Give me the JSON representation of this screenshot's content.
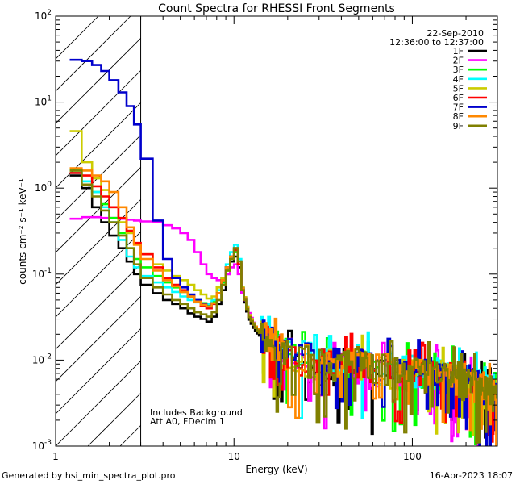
{
  "chart_data": {
    "type": "line",
    "title": "Count Spectra for RHESSI Front Segments",
    "xlabel": "Energy (keV)",
    "ylabel": "counts cm⁻² s⁻¹ keV⁻¹",
    "x_scale": "log",
    "y_scale": "log",
    "xlim": [
      1,
      300
    ],
    "ylim": [
      0.001,
      100
    ],
    "x_tick_labels": [
      "1",
      "10",
      "100"
    ],
    "y_tick_labels": [
      {
        "base": "10",
        "exp": "-3"
      },
      {
        "base": "10",
        "exp": "-2"
      },
      {
        "base": "10",
        "exp": "-1"
      },
      {
        "base": "10",
        "exp": "0"
      },
      {
        "base": "10",
        "exp": "1"
      },
      {
        "base": "10",
        "exp": "2"
      }
    ],
    "date": "22-Sep-2010",
    "time_range": "12:36:00 to 12:37:00",
    "annotations": [
      "Includes Background",
      "Att A0, FDecim 1"
    ],
    "hatched_region_max_energy": 3.0,
    "noise_seed": [
      11,
      23,
      37,
      41,
      53,
      67,
      71,
      83,
      97
    ],
    "series": [
      {
        "name": "1F",
        "color": "#000000",
        "x": [
          1.2,
          1.4,
          1.6,
          1.8,
          2.0,
          2.25,
          2.5,
          2.75,
          3.0,
          3.5,
          4.0,
          4.5,
          5.0,
          5.5,
          6.0,
          6.5,
          7.0,
          7.5,
          8.0,
          8.5,
          9.0,
          9.5,
          10.0,
          10.5,
          11.0,
          12.0,
          13.0,
          15.0,
          17.0,
          20.0,
          25.0,
          30.0,
          40.0,
          50.0,
          60.0,
          80.0,
          100.0,
          150.0,
          200.0,
          250.0,
          300.0
        ],
        "y": [
          1.4,
          1.0,
          0.6,
          0.4,
          0.28,
          0.2,
          0.14,
          0.1,
          0.075,
          0.06,
          0.05,
          0.045,
          0.04,
          0.035,
          0.032,
          0.03,
          0.028,
          0.032,
          0.045,
          0.065,
          0.1,
          0.14,
          0.16,
          0.12,
          0.06,
          0.03,
          0.022,
          0.016,
          0.013,
          0.011,
          0.009,
          0.008,
          0.0075,
          0.008,
          0.007,
          0.0068,
          0.0065,
          0.006,
          0.005,
          0.004,
          0.003
        ]
      },
      {
        "name": "2F",
        "color": "#ff00ff",
        "x": [
          1.2,
          1.4,
          1.6,
          1.8,
          2.0,
          2.25,
          2.5,
          2.75,
          3.0,
          3.5,
          4.0,
          4.5,
          5.0,
          5.5,
          6.0,
          6.5,
          7.0,
          7.5,
          8.0,
          8.5,
          9.0,
          9.5,
          10.0,
          10.5,
          11.0,
          12.0,
          13.0,
          15.0,
          17.0,
          20.0,
          25.0,
          30.0,
          40.0,
          50.0,
          60.0,
          80.0,
          100.0,
          150.0,
          200.0,
          250.0,
          300.0
        ],
        "y": [
          0.44,
          0.46,
          0.46,
          0.45,
          0.45,
          0.44,
          0.43,
          0.42,
          0.41,
          0.4,
          0.37,
          0.34,
          0.3,
          0.25,
          0.18,
          0.13,
          0.1,
          0.09,
          0.085,
          0.09,
          0.1,
          0.12,
          0.13,
          0.1,
          0.06,
          0.036,
          0.025,
          0.018,
          0.015,
          0.012,
          0.01,
          0.009,
          0.008,
          0.0085,
          0.0075,
          0.007,
          0.0068,
          0.006,
          0.0052,
          0.0042,
          0.0032
        ]
      },
      {
        "name": "3F",
        "color": "#00ff00",
        "x": [
          1.2,
          1.4,
          1.6,
          1.8,
          2.0,
          2.25,
          2.5,
          2.75,
          3.0,
          3.5,
          4.0,
          4.5,
          5.0,
          5.5,
          6.0,
          6.5,
          7.0,
          7.5,
          8.0,
          8.5,
          9.0,
          9.5,
          10.0,
          10.5,
          11.0,
          12.0,
          13.0,
          15.0,
          17.0,
          20.0,
          25.0,
          30.0,
          40.0,
          50.0,
          60.0,
          80.0,
          100.0,
          150.0,
          200.0,
          250.0,
          300.0
        ],
        "y": [
          1.6,
          1.2,
          0.9,
          0.65,
          0.45,
          0.3,
          0.2,
          0.15,
          0.12,
          0.095,
          0.08,
          0.07,
          0.062,
          0.055,
          0.05,
          0.046,
          0.044,
          0.048,
          0.06,
          0.08,
          0.11,
          0.15,
          0.18,
          0.13,
          0.065,
          0.032,
          0.024,
          0.017,
          0.014,
          0.012,
          0.01,
          0.009,
          0.0085,
          0.009,
          0.008,
          0.0075,
          0.007,
          0.0065,
          0.0055,
          0.0045,
          0.0035
        ]
      },
      {
        "name": "4F",
        "color": "#00ffff",
        "x": [
          1.2,
          1.4,
          1.6,
          1.8,
          2.0,
          2.25,
          2.5,
          2.75,
          3.0,
          3.5,
          4.0,
          4.5,
          5.0,
          5.5,
          6.0,
          6.5,
          7.0,
          7.5,
          8.0,
          8.5,
          9.0,
          9.5,
          10.0,
          10.5,
          11.0,
          12.0,
          13.0,
          15.0,
          17.0,
          20.0,
          25.0,
          30.0,
          40.0,
          50.0,
          60.0,
          80.0,
          100.0,
          150.0,
          200.0,
          250.0,
          300.0
        ],
        "y": [
          1.5,
          1.2,
          0.9,
          0.6,
          0.4,
          0.25,
          0.16,
          0.12,
          0.095,
          0.08,
          0.07,
          0.062,
          0.055,
          0.05,
          0.047,
          0.045,
          0.045,
          0.05,
          0.065,
          0.09,
          0.13,
          0.18,
          0.22,
          0.15,
          0.07,
          0.034,
          0.025,
          0.018,
          0.015,
          0.012,
          0.011,
          0.0095,
          0.009,
          0.0095,
          0.0085,
          0.008,
          0.0075,
          0.007,
          0.006,
          0.0048,
          0.0036
        ]
      },
      {
        "name": "5F",
        "color": "#cccc00",
        "x": [
          1.2,
          1.4,
          1.6,
          1.8,
          2.0,
          2.25,
          2.5,
          2.75,
          3.0,
          3.5,
          4.0,
          4.5,
          5.0,
          5.5,
          6.0,
          6.5,
          7.0,
          7.5,
          8.0,
          8.5,
          9.0,
          9.5,
          10.0,
          10.5,
          11.0,
          12.0,
          13.0,
          15.0,
          17.0,
          20.0,
          25.0,
          30.0,
          40.0,
          50.0,
          60.0,
          80.0,
          100.0,
          150.0,
          200.0,
          250.0,
          300.0
        ],
        "y": [
          4.6,
          2.0,
          1.3,
          0.95,
          0.6,
          0.4,
          0.3,
          0.22,
          0.17,
          0.13,
          0.11,
          0.095,
          0.085,
          0.075,
          0.065,
          0.058,
          0.052,
          0.055,
          0.07,
          0.09,
          0.12,
          0.16,
          0.2,
          0.14,
          0.07,
          0.034,
          0.025,
          0.018,
          0.015,
          0.012,
          0.01,
          0.009,
          0.0085,
          0.009,
          0.008,
          0.0075,
          0.007,
          0.0065,
          0.0055,
          0.0045,
          0.0035
        ]
      },
      {
        "name": "6F",
        "color": "#ff0000",
        "x": [
          1.2,
          1.4,
          1.6,
          1.8,
          2.0,
          2.25,
          2.5,
          2.75,
          3.0,
          3.5,
          4.0,
          4.5,
          5.0,
          5.5,
          6.0,
          6.5,
          7.0,
          7.5,
          8.0,
          8.5,
          9.0,
          9.5,
          10.0,
          10.5,
          11.0,
          12.0,
          13.0,
          15.0,
          17.0,
          20.0,
          25.0,
          30.0,
          40.0,
          50.0,
          60.0,
          80.0,
          100.0,
          150.0,
          200.0,
          250.0,
          300.0
        ],
        "y": [
          1.5,
          1.4,
          1.05,
          0.8,
          0.6,
          0.45,
          0.32,
          0.23,
          0.17,
          0.12,
          0.09,
          0.075,
          0.065,
          0.055,
          0.048,
          0.043,
          0.04,
          0.045,
          0.06,
          0.085,
          0.12,
          0.16,
          0.19,
          0.13,
          0.065,
          0.032,
          0.024,
          0.017,
          0.014,
          0.012,
          0.01,
          0.009,
          0.0085,
          0.009,
          0.008,
          0.0075,
          0.007,
          0.0065,
          0.0055,
          0.0045,
          0.0035
        ]
      },
      {
        "name": "7F",
        "color": "#0000cc",
        "x": [
          1.2,
          1.4,
          1.6,
          1.8,
          2.0,
          2.25,
          2.5,
          2.75,
          3.0,
          3.5,
          4.0,
          4.5,
          5.0,
          5.5,
          6.0,
          6.5,
          7.0,
          7.5,
          8.0,
          8.5,
          9.0,
          9.5,
          10.0,
          10.5,
          11.0,
          12.0,
          13.0,
          15.0,
          17.0,
          20.0,
          25.0,
          30.0,
          40.0,
          50.0,
          60.0,
          80.0,
          100.0,
          150.0,
          200.0,
          250.0,
          300.0
        ],
        "y": [
          31,
          30,
          27,
          23,
          18,
          13,
          9,
          5.5,
          2.2,
          0.42,
          0.15,
          0.09,
          0.07,
          0.058,
          0.05,
          0.045,
          0.042,
          0.046,
          0.06,
          0.085,
          0.12,
          0.16,
          0.2,
          0.14,
          0.068,
          0.033,
          0.025,
          0.018,
          0.015,
          0.012,
          0.011,
          0.0095,
          0.009,
          0.0095,
          0.0085,
          0.008,
          0.0075,
          0.007,
          0.006,
          0.0048,
          0.0036
        ]
      },
      {
        "name": "8F",
        "color": "#ff8800",
        "x": [
          1.2,
          1.4,
          1.6,
          1.8,
          2.0,
          2.25,
          2.5,
          2.75,
          3.0,
          3.5,
          4.0,
          4.5,
          5.0,
          5.5,
          6.0,
          6.5,
          7.0,
          7.5,
          8.0,
          8.5,
          9.0,
          9.5,
          10.0,
          10.5,
          11.0,
          12.0,
          13.0,
          15.0,
          17.0,
          20.0,
          25.0,
          30.0,
          40.0,
          50.0,
          60.0,
          80.0,
          100.0,
          150.0,
          200.0,
          250.0,
          300.0
        ],
        "y": [
          1.7,
          1.6,
          1.4,
          1.2,
          0.9,
          0.6,
          0.35,
          0.22,
          0.15,
          0.11,
          0.085,
          0.072,
          0.062,
          0.055,
          0.048,
          0.044,
          0.042,
          0.046,
          0.06,
          0.085,
          0.12,
          0.16,
          0.2,
          0.14,
          0.068,
          0.033,
          0.025,
          0.018,
          0.015,
          0.012,
          0.011,
          0.0095,
          0.009,
          0.0095,
          0.0085,
          0.008,
          0.0075,
          0.007,
          0.006,
          0.0048,
          0.0036
        ]
      },
      {
        "name": "9F",
        "color": "#808000",
        "x": [
          1.2,
          1.4,
          1.6,
          1.8,
          2.0,
          2.25,
          2.5,
          2.75,
          3.0,
          3.5,
          4.0,
          4.5,
          5.0,
          5.5,
          6.0,
          6.5,
          7.0,
          7.5,
          8.0,
          8.5,
          9.0,
          9.5,
          10.0,
          10.5,
          11.0,
          12.0,
          13.0,
          15.0,
          17.0,
          20.0,
          25.0,
          30.0,
          40.0,
          50.0,
          60.0,
          80.0,
          100.0,
          150.0,
          200.0,
          250.0,
          300.0
        ],
        "y": [
          1.6,
          1.1,
          0.8,
          0.55,
          0.4,
          0.28,
          0.2,
          0.13,
          0.09,
          0.07,
          0.058,
          0.05,
          0.045,
          0.04,
          0.036,
          0.034,
          0.032,
          0.036,
          0.05,
          0.075,
          0.11,
          0.15,
          0.2,
          0.14,
          0.065,
          0.032,
          0.024,
          0.017,
          0.014,
          0.012,
          0.01,
          0.009,
          0.0085,
          0.009,
          0.008,
          0.0075,
          0.007,
          0.0065,
          0.0055,
          0.0045,
          0.0035
        ]
      }
    ]
  },
  "footer": {
    "left": "Generated by hsi_min_spectra_plot.pro",
    "right": "16-Apr-2023 18:07"
  }
}
